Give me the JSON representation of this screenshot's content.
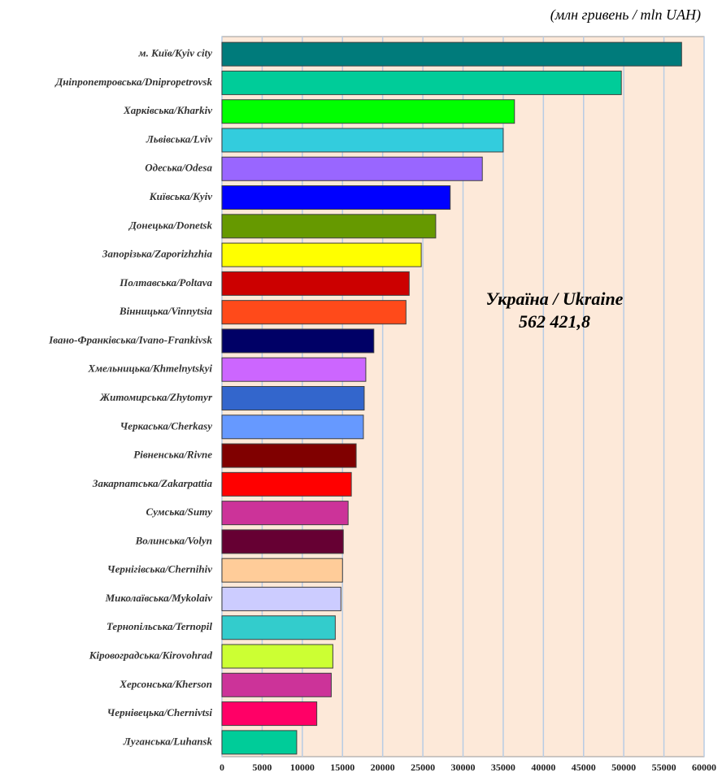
{
  "chart_data": {
    "type": "bar",
    "orientation": "horizontal",
    "unit_label": "(млн гривень / mln UAH)",
    "annotation": [
      "Україна / Ukraine",
      "562 421,8"
    ],
    "categories": [
      "м. Київ/Kyiv city",
      "Дніпропетровська/Dnipropetrovsk",
      "Харківська/Kharkiv",
      "Львівська/Lviv",
      "Одеська/Odesa",
      "Київська/Kyiv",
      "Донецька/Donetsk",
      "Запорізька/Zaporizhzhia",
      "Полтавська/Poltava",
      "Вінницька/Vinnytsia",
      "Івано-Франківська/Ivano-Frankivsk",
      "Хмельницька/Khmelnytskyi",
      "Житомирська/Zhytomyr",
      "Черкаська/Cherkasy",
      "Рівненська/Rivne",
      "Закарпатська/Zakarpattia",
      "Сумська/Sumy",
      "Волинська/Volyn",
      "Чернігівська/Chernihiv",
      "Миколаївська/Mykolaiv",
      "Тернопільська/Ternopil",
      "Кіровоградська/Kirovohrad",
      "Херсонська/Kherson",
      "Чернівецька/Chernivtsi",
      "Луганська/Luhansk"
    ],
    "values": [
      57200,
      49700,
      36400,
      35000,
      32400,
      28400,
      26600,
      24800,
      23300,
      22900,
      18900,
      17900,
      17700,
      17600,
      16700,
      16100,
      15700,
      15100,
      15000,
      14800,
      14100,
      13800,
      13600,
      11800,
      9300
    ],
    "colors": [
      "#007b7b",
      "#00cc99",
      "#00ff00",
      "#33ccdd",
      "#9966ff",
      "#0000ff",
      "#669900",
      "#ffff00",
      "#cc0000",
      "#ff4a1a",
      "#000066",
      "#cc66ff",
      "#3366cc",
      "#6699ff",
      "#800000",
      "#ff0000",
      "#cc3399",
      "#660033",
      "#ffcc99",
      "#ccccff",
      "#33cccc",
      "#ccff33",
      "#cc3399",
      "#ff0066",
      "#00cc99"
    ],
    "xlim": [
      0,
      60000
    ],
    "xticks": [
      0,
      5000,
      10000,
      15000,
      20000,
      25000,
      30000,
      35000,
      40000,
      45000,
      50000,
      55000,
      60000
    ],
    "grid": true,
    "plot_background": "#fde9d9"
  }
}
